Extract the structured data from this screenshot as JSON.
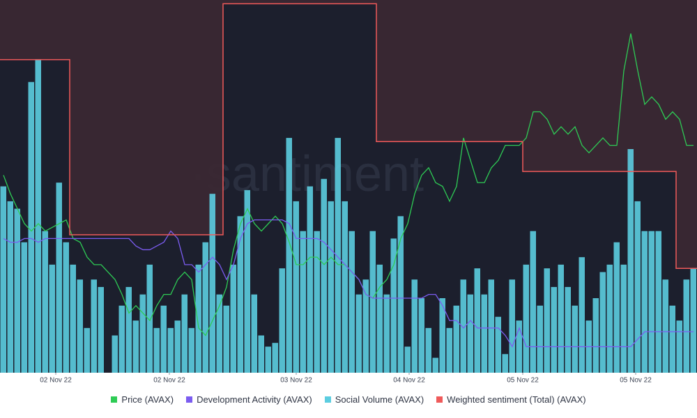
{
  "chart_data": {
    "type": "line",
    "watermark": "·santiment",
    "xlim": [
      0,
      100
    ],
    "ylim": [
      0,
      100
    ],
    "xticks": [
      {
        "value": 8,
        "label": "02 Nov 22"
      },
      {
        "value": 24.3,
        "label": "02 Nov 22"
      },
      {
        "value": 42.5,
        "label": "03 Nov 22"
      },
      {
        "value": 58.7,
        "label": "04 Nov 22"
      },
      {
        "value": 75,
        "label": "05 Nov 22"
      },
      {
        "value": 91.2,
        "label": "05 Nov 22"
      }
    ],
    "legend": "bottom",
    "series": [
      {
        "name": "Price (AVAX)",
        "color": "#2ecc55",
        "kind": "line",
        "values": [
          53,
          48,
          44,
          40,
          38,
          40,
          38,
          39,
          40,
          41,
          36,
          35,
          31,
          29,
          29,
          27,
          25,
          21,
          16,
          18,
          16,
          14,
          18,
          21,
          21,
          25,
          27,
          25,
          12,
          10,
          14,
          18,
          23,
          33,
          40,
          44,
          40,
          38,
          40,
          42,
          40,
          35,
          29,
          29,
          31,
          31,
          29,
          31,
          29,
          29,
          27,
          25,
          21,
          20,
          23,
          25,
          29,
          36,
          40,
          48,
          53,
          55,
          51,
          50,
          46,
          50,
          63,
          57,
          51,
          51,
          55,
          57,
          61,
          61,
          61,
          63,
          70,
          70,
          68,
          64,
          66,
          64,
          66,
          61,
          59,
          61,
          63,
          61,
          61,
          81,
          91,
          81,
          72,
          74,
          72,
          68,
          70,
          68,
          61,
          61
        ]
      },
      {
        "name": "Development Activity (AVAX)",
        "color": "#7b5cf0",
        "kind": "line",
        "values": [
          36,
          35,
          35,
          36,
          36,
          35,
          36,
          36,
          36,
          36,
          36,
          36,
          36,
          36,
          36,
          36,
          36,
          36,
          36,
          34,
          33,
          33,
          34,
          35,
          38,
          36,
          29,
          29,
          27,
          29,
          31,
          29,
          25,
          29,
          36,
          40,
          41,
          41,
          41,
          41,
          41,
          40,
          36,
          36,
          36,
          36,
          35,
          33,
          31,
          29,
          27,
          25,
          21,
          20,
          20,
          20,
          20,
          20,
          20,
          20,
          20,
          21,
          21,
          18,
          14,
          14,
          12,
          14,
          12,
          12,
          12,
          12,
          10,
          7,
          12,
          7,
          7,
          7,
          7,
          7,
          7,
          7,
          7,
          7,
          7,
          7,
          7,
          7,
          7,
          7,
          7,
          9,
          11,
          11,
          11,
          11,
          11,
          11,
          11,
          11
        ]
      },
      {
        "name": "Social Volume (AVAX)",
        "color": "#5ccde0",
        "kind": "bar",
        "values": [
          50,
          46,
          44,
          35,
          78,
          84,
          38,
          29,
          51,
          35,
          29,
          25,
          12,
          25,
          23,
          0,
          10,
          18,
          23,
          14,
          21,
          29,
          12,
          18,
          12,
          14,
          21,
          12,
          29,
          35,
          48,
          21,
          18,
          29,
          42,
          49,
          21,
          10,
          7,
          8,
          28,
          63,
          46,
          38,
          50,
          38,
          52,
          46,
          63,
          46,
          38,
          21,
          25,
          38,
          29,
          21,
          36,
          42,
          7,
          25,
          20,
          12,
          4,
          20,
          12,
          18,
          25,
          21,
          28,
          21,
          25,
          15,
          5,
          25,
          14,
          29,
          38,
          18,
          28,
          23,
          29,
          23,
          18,
          31,
          14,
          20,
          27,
          29,
          35,
          29,
          60,
          46,
          38,
          38,
          38,
          25,
          18,
          14,
          25,
          28
        ]
      },
      {
        "name": "Weighted sentiment (Total) (AVAX)",
        "color": "#ef5a5a",
        "kind": "step",
        "values": [
          84,
          84,
          84,
          84,
          84,
          84,
          84,
          84,
          84,
          84,
          37,
          37,
          37,
          37,
          37,
          37,
          37,
          37,
          37,
          37,
          37,
          37,
          37,
          37,
          37,
          37,
          37,
          37,
          37,
          37,
          37,
          37,
          99,
          99,
          99,
          99,
          99,
          99,
          99,
          99,
          99,
          99,
          99,
          99,
          99,
          99,
          99,
          99,
          99,
          99,
          99,
          99,
          99,
          99,
          62,
          62,
          62,
          62,
          62,
          62,
          62,
          62,
          62,
          62,
          62,
          62,
          62,
          62,
          62,
          62,
          62,
          62,
          62,
          62,
          62,
          54,
          54,
          54,
          54,
          54,
          54,
          54,
          54,
          54,
          54,
          54,
          54,
          54,
          54,
          54,
          54,
          54,
          54,
          54,
          54,
          54,
          54,
          28,
          28,
          28
        ]
      }
    ]
  }
}
